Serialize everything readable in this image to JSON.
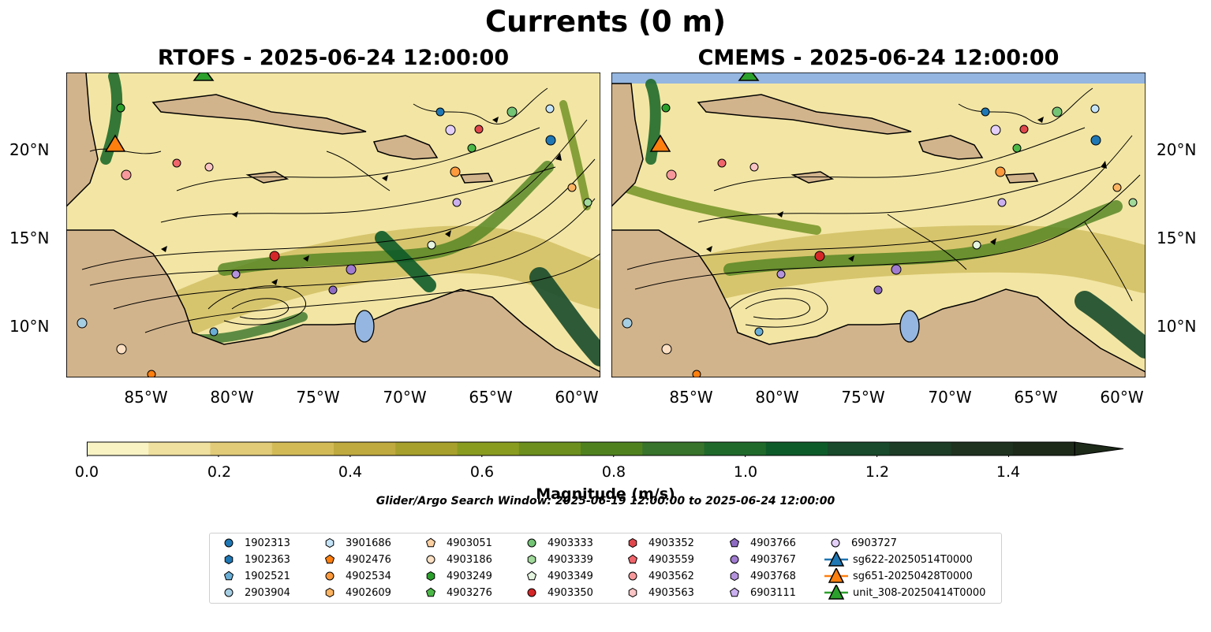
{
  "title": "Currents (0 m)",
  "panels": [
    {
      "id": "rtofs",
      "title": "RTOFS - 2025-06-24 12:00:00"
    },
    {
      "id": "cmems",
      "title": "CMEMS - 2025-06-24 12:00:00"
    }
  ],
  "lat_ticks": [
    "20°N",
    "15°N",
    "10°N"
  ],
  "lon_ticks": [
    "85°W",
    "80°W",
    "75°W",
    "70°W",
    "65°W",
    "60°W"
  ],
  "colorbar": {
    "label": "Magnitude (m/s)",
    "ticks": [
      "0.0",
      "0.2",
      "0.4",
      "0.6",
      "0.8",
      "1.0",
      "1.2",
      "1.4"
    ],
    "colors": [
      "#f9f3c4",
      "#efe09f",
      "#e2cb78",
      "#d2bb57",
      "#bfaa3f",
      "#a7a02c",
      "#8a9c1f",
      "#6c8f1e",
      "#4f821f",
      "#38742b",
      "#1f6a2b",
      "#0e5b2a",
      "#184a2b",
      "#1d3d26",
      "#1f3220",
      "#1d2a1a"
    ],
    "extend": "max"
  },
  "search_window": "Glider/Argo Search Window: 2025-06-19 12:00:00 to 2025-06-24 12:00:00",
  "colors": {
    "land": "#d2b48c",
    "water_bg": "#f3e6a4",
    "blue_fill": "#94b6e0",
    "glider_blue": "#1f77b4",
    "glider_orange": "#ff7f0e",
    "glider_green": "#2ca02c"
  },
  "legend": [
    {
      "label": "1902313",
      "shape": "circle",
      "color": "#1f77b4"
    },
    {
      "label": "1902363",
      "shape": "hexagon",
      "color": "#1f77b4"
    },
    {
      "label": "1902521",
      "shape": "pentagon",
      "color": "#6aaed6"
    },
    {
      "label": "2903904",
      "shape": "circle",
      "color": "#a6cee3"
    },
    {
      "label": "3901686",
      "shape": "hexagon",
      "color": "#c6e4f8"
    },
    {
      "label": "4902476",
      "shape": "pentagon",
      "color": "#ff7f0e"
    },
    {
      "label": "4902534",
      "shape": "circle",
      "color": "#fd9a3d"
    },
    {
      "label": "4902609",
      "shape": "hexagon",
      "color": "#fdb462"
    },
    {
      "label": "4903051",
      "shape": "pentagon",
      "color": "#fdd0a2"
    },
    {
      "label": "4903186",
      "shape": "circle",
      "color": "#fde0c4"
    },
    {
      "label": "4903249",
      "shape": "hexagon",
      "color": "#2ca02c"
    },
    {
      "label": "4903276",
      "shape": "pentagon",
      "color": "#4cb848"
    },
    {
      "label": "4903333",
      "shape": "circle",
      "color": "#74c476"
    },
    {
      "label": "4903339",
      "shape": "hexagon",
      "color": "#a1d99b"
    },
    {
      "label": "4903349",
      "shape": "pentagon",
      "color": "#e5f5e0"
    },
    {
      "label": "4903350",
      "shape": "circle",
      "color": "#d62728"
    },
    {
      "label": "4903352",
      "shape": "hexagon",
      "color": "#e0474c"
    },
    {
      "label": "4903559",
      "shape": "pentagon",
      "color": "#f0656b"
    },
    {
      "label": "4903562",
      "shape": "circle",
      "color": "#f7999c"
    },
    {
      "label": "4903563",
      "shape": "hexagon",
      "color": "#fbc4c4"
    },
    {
      "label": "4903766",
      "shape": "pentagon",
      "color": "#8e6bc2"
    },
    {
      "label": "4903767",
      "shape": "circle",
      "color": "#a07bd0"
    },
    {
      "label": "4903768",
      "shape": "hexagon",
      "color": "#b493dc"
    },
    {
      "label": "6903111",
      "shape": "pentagon",
      "color": "#cbb0f0"
    },
    {
      "label": "6903727",
      "shape": "circle",
      "color": "#e3cff8"
    },
    {
      "label": "sg622-20250514T0000",
      "shape": "triangle-line",
      "color": "#1f77b4"
    },
    {
      "label": "sg651-20250428T0000",
      "shape": "triangle-line",
      "color": "#ff7f0e"
    },
    {
      "label": "unit_308-20250414T0000",
      "shape": "triangle-line",
      "color": "#2ca02c"
    }
  ]
}
